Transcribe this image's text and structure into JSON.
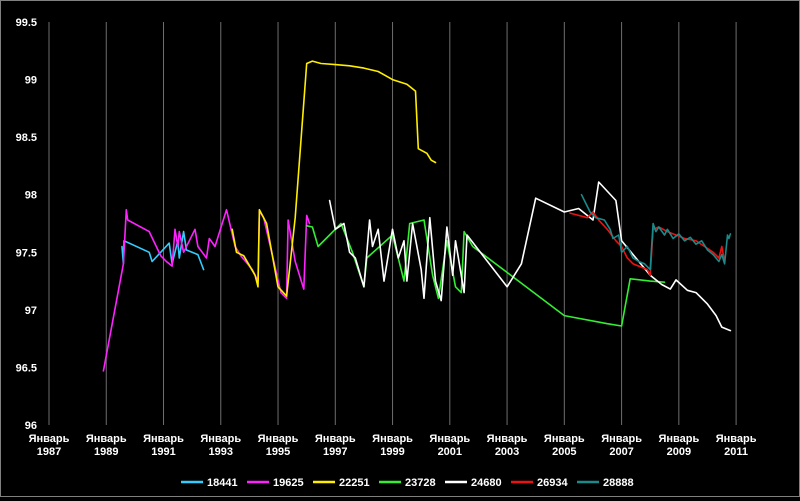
{
  "chart_data": {
    "type": "line",
    "title": "",
    "xlabel": "",
    "ylabel": "",
    "xlim": [
      1987.0,
      2011.8
    ],
    "ylim": [
      96,
      99.5
    ],
    "grid": "vertical-only",
    "background": "#000000",
    "legend_position": "bottom",
    "y_ticks": [
      96,
      96.5,
      97,
      97.5,
      98,
      98.5,
      99,
      99.5
    ],
    "y_tick_labels": [
      "96",
      "96.5",
      "97",
      "97.5",
      "98",
      "98.5",
      "99",
      "99.5"
    ],
    "x_ticks": [
      1987,
      1989,
      1991,
      1993,
      1995,
      1997,
      1999,
      2001,
      2003,
      2005,
      2007,
      2009,
      2011
    ],
    "x_tick_labels": [
      [
        "Январь",
        "1987"
      ],
      [
        "Январь",
        "1989"
      ],
      [
        "Январь",
        "1991"
      ],
      [
        "Январь",
        "1993"
      ],
      [
        "Январь",
        "1995"
      ],
      [
        "Январь",
        "1997"
      ],
      [
        "Январь",
        "1999"
      ],
      [
        "Январь",
        "2001"
      ],
      [
        "Январь",
        "2003"
      ],
      [
        "Январь",
        "2005"
      ],
      [
        "Январь",
        "2007"
      ],
      [
        "Январь",
        "2009"
      ],
      [
        "Январь",
        "2011"
      ]
    ],
    "series": [
      {
        "name": "18441",
        "color": "#33ccff",
        "points": [
          [
            1989.55,
            97.55
          ],
          [
            1989.6,
            97.4
          ],
          [
            1989.62,
            97.6
          ],
          [
            1990.5,
            97.5
          ],
          [
            1990.6,
            97.42
          ],
          [
            1990.9,
            97.5
          ],
          [
            1991.2,
            97.58
          ],
          [
            1991.3,
            97.4
          ],
          [
            1991.5,
            97.6
          ],
          [
            1991.55,
            97.45
          ],
          [
            1991.7,
            97.68
          ],
          [
            1991.8,
            97.52
          ],
          [
            1992.0,
            97.5
          ],
          [
            1992.2,
            97.48
          ],
          [
            1992.4,
            97.35
          ]
        ]
      },
      {
        "name": "19625",
        "color": "#ff22ff",
        "points": [
          [
            1988.9,
            96.47
          ],
          [
            1989.6,
            97.4
          ],
          [
            1989.7,
            97.87
          ],
          [
            1989.75,
            97.78
          ],
          [
            1990.5,
            97.68
          ],
          [
            1990.9,
            97.47
          ],
          [
            1991.1,
            97.42
          ],
          [
            1991.3,
            97.38
          ],
          [
            1991.4,
            97.7
          ],
          [
            1991.5,
            97.55
          ],
          [
            1991.55,
            97.68
          ],
          [
            1991.7,
            97.5
          ],
          [
            1992.1,
            97.7
          ],
          [
            1992.2,
            97.55
          ],
          [
            1992.5,
            97.45
          ],
          [
            1992.6,
            97.62
          ],
          [
            1992.8,
            97.55
          ],
          [
            1993.2,
            97.87
          ],
          [
            1993.5,
            97.55
          ],
          [
            1993.7,
            97.47
          ],
          [
            1994.1,
            97.35
          ],
          [
            1994.3,
            97.25
          ],
          [
            1994.35,
            97.86
          ],
          [
            1994.5,
            97.8
          ],
          [
            1995.1,
            97.15
          ],
          [
            1995.3,
            97.1
          ],
          [
            1995.35,
            97.78
          ],
          [
            1995.6,
            97.42
          ],
          [
            1995.9,
            97.18
          ],
          [
            1996.0,
            97.82
          ],
          [
            1996.1,
            97.75
          ]
        ]
      },
      {
        "name": "22251",
        "color": "#ffee00",
        "points": [
          [
            1993.4,
            97.7
          ],
          [
            1993.55,
            97.5
          ],
          [
            1993.8,
            97.47
          ],
          [
            1994.2,
            97.3
          ],
          [
            1994.3,
            97.2
          ],
          [
            1994.35,
            97.87
          ],
          [
            1994.6,
            97.75
          ],
          [
            1995.0,
            97.2
          ],
          [
            1995.3,
            97.12
          ],
          [
            1995.6,
            97.8
          ],
          [
            1996.0,
            99.14
          ],
          [
            1996.2,
            99.16
          ],
          [
            1996.5,
            99.14
          ],
          [
            1997.0,
            99.13
          ],
          [
            1997.5,
            99.12
          ],
          [
            1998.0,
            99.1
          ],
          [
            1998.5,
            99.07
          ],
          [
            1999.0,
            99.0
          ],
          [
            1999.5,
            98.96
          ],
          [
            1999.8,
            98.9
          ],
          [
            1999.9,
            98.4
          ],
          [
            2000.2,
            98.36
          ],
          [
            2000.35,
            98.3
          ],
          [
            2000.5,
            98.28
          ]
        ]
      },
      {
        "name": "23728",
        "color": "#33ee33",
        "points": [
          [
            1996.0,
            97.73
          ],
          [
            1996.2,
            97.72
          ],
          [
            1996.4,
            97.55
          ],
          [
            1996.8,
            97.65
          ],
          [
            1997.2,
            97.75
          ],
          [
            1997.6,
            97.5
          ],
          [
            1998.0,
            97.2
          ],
          [
            1998.1,
            97.45
          ],
          [
            1999.0,
            97.65
          ],
          [
            1999.4,
            97.25
          ],
          [
            1999.6,
            97.75
          ],
          [
            2000.1,
            97.78
          ],
          [
            2000.4,
            97.3
          ],
          [
            2000.6,
            97.1
          ],
          [
            2000.9,
            97.6
          ],
          [
            2001.2,
            97.2
          ],
          [
            2001.4,
            97.15
          ],
          [
            2001.5,
            97.68
          ],
          [
            2001.8,
            97.55
          ],
          [
            2005.0,
            96.95
          ],
          [
            2006.5,
            96.88
          ],
          [
            2007.0,
            96.86
          ],
          [
            2007.3,
            97.27
          ],
          [
            2008.0,
            97.25
          ],
          [
            2008.5,
            97.24
          ]
        ]
      },
      {
        "name": "24680",
        "color": "#ffffff",
        "points": [
          [
            1996.8,
            97.95
          ],
          [
            1997.0,
            97.7
          ],
          [
            1997.3,
            97.75
          ],
          [
            1997.5,
            97.5
          ],
          [
            1997.7,
            97.45
          ],
          [
            1998.0,
            97.2
          ],
          [
            1998.2,
            97.78
          ],
          [
            1998.3,
            97.55
          ],
          [
            1998.5,
            97.7
          ],
          [
            1998.7,
            97.25
          ],
          [
            1999.0,
            97.7
          ],
          [
            1999.2,
            97.45
          ],
          [
            1999.4,
            97.6
          ],
          [
            1999.5,
            97.25
          ],
          [
            1999.7,
            97.75
          ],
          [
            2000.0,
            97.35
          ],
          [
            2000.1,
            97.1
          ],
          [
            2000.3,
            97.8
          ],
          [
            2000.5,
            97.25
          ],
          [
            2000.7,
            97.08
          ],
          [
            2000.9,
            97.72
          ],
          [
            2001.1,
            97.3
          ],
          [
            2001.2,
            97.6
          ],
          [
            2001.3,
            97.45
          ],
          [
            2001.5,
            97.15
          ],
          [
            2001.6,
            97.65
          ],
          [
            2003.0,
            97.2
          ],
          [
            2003.5,
            97.4
          ],
          [
            2004.0,
            97.97
          ],
          [
            2005.0,
            97.85
          ],
          [
            2005.5,
            97.88
          ],
          [
            2006.0,
            97.78
          ],
          [
            2006.2,
            98.11
          ],
          [
            2006.8,
            97.95
          ],
          [
            2007.0,
            97.6
          ],
          [
            2007.5,
            97.45
          ],
          [
            2008.0,
            97.3
          ],
          [
            2008.4,
            97.22
          ],
          [
            2008.7,
            97.18
          ],
          [
            2008.9,
            97.26
          ],
          [
            2009.3,
            97.17
          ],
          [
            2009.6,
            97.15
          ],
          [
            2010.0,
            97.05
          ],
          [
            2010.3,
            96.95
          ],
          [
            2010.5,
            96.85
          ],
          [
            2010.8,
            96.82
          ]
        ]
      },
      {
        "name": "26934",
        "color": "#ee1111",
        "points": [
          [
            2005.2,
            97.84
          ],
          [
            2005.5,
            97.82
          ],
          [
            2005.8,
            97.8
          ],
          [
            2006.0,
            97.85
          ],
          [
            2006.2,
            97.78
          ],
          [
            2006.5,
            97.7
          ],
          [
            2006.8,
            97.6
          ],
          [
            2007.0,
            97.55
          ],
          [
            2007.2,
            97.45
          ],
          [
            2007.4,
            97.4
          ],
          [
            2007.6,
            97.38
          ],
          [
            2007.9,
            97.35
          ],
          [
            2008.0,
            97.3
          ],
          [
            2008.1,
            97.7
          ],
          [
            2008.3,
            97.72
          ],
          [
            2008.6,
            97.68
          ],
          [
            2008.9,
            97.65
          ],
          [
            2009.2,
            97.62
          ],
          [
            2009.6,
            97.6
          ],
          [
            2009.9,
            97.55
          ],
          [
            2010.2,
            97.5
          ],
          [
            2010.4,
            97.45
          ],
          [
            2010.5,
            97.55
          ],
          [
            2010.6,
            97.42
          ]
        ]
      },
      {
        "name": "28888",
        "color": "#1a8a8a",
        "points": [
          [
            2005.6,
            98.0
          ],
          [
            2005.9,
            97.85
          ],
          [
            2006.1,
            97.8
          ],
          [
            2006.4,
            97.78
          ],
          [
            2006.6,
            97.7
          ],
          [
            2006.7,
            97.62
          ],
          [
            2006.9,
            97.65
          ],
          [
            2007.0,
            97.5
          ],
          [
            2007.2,
            97.55
          ],
          [
            2007.4,
            97.45
          ],
          [
            2007.6,
            97.42
          ],
          [
            2007.8,
            97.4
          ],
          [
            2008.0,
            97.35
          ],
          [
            2008.1,
            97.75
          ],
          [
            2008.2,
            97.68
          ],
          [
            2008.3,
            97.72
          ],
          [
            2008.5,
            97.65
          ],
          [
            2008.6,
            97.7
          ],
          [
            2008.8,
            97.62
          ],
          [
            2009.0,
            97.66
          ],
          [
            2009.2,
            97.6
          ],
          [
            2009.4,
            97.63
          ],
          [
            2009.6,
            97.57
          ],
          [
            2009.8,
            97.6
          ],
          [
            2010.0,
            97.52
          ],
          [
            2010.2,
            97.48
          ],
          [
            2010.4,
            97.42
          ],
          [
            2010.5,
            97.48
          ],
          [
            2010.6,
            97.4
          ],
          [
            2010.7,
            97.65
          ],
          [
            2010.75,
            97.62
          ],
          [
            2010.8,
            97.66
          ]
        ]
      }
    ]
  }
}
